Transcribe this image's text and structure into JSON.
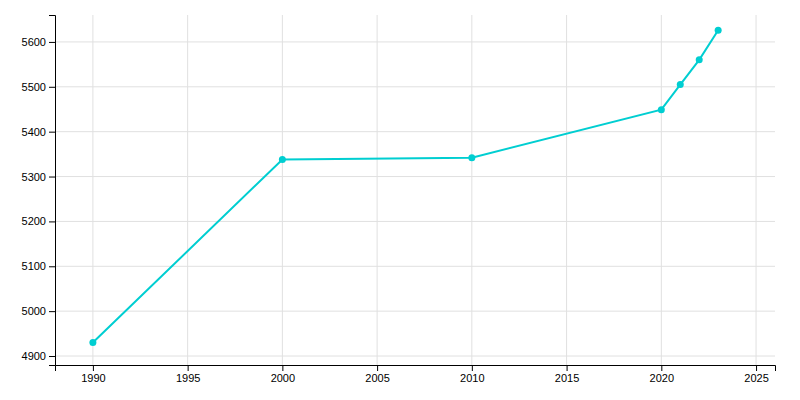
{
  "chart_data": {
    "type": "line",
    "x": [
      1990,
      2000,
      2010,
      2020,
      2021,
      2022,
      2023
    ],
    "values": [
      4930,
      5338,
      5342,
      5449,
      5505,
      5560,
      5626
    ],
    "color": "#00CED1",
    "marker": "circle",
    "xlim": [
      1988,
      2026
    ],
    "ylim": [
      4880,
      5660
    ],
    "xticks": [
      1990,
      1995,
      2000,
      2005,
      2010,
      2015,
      2020,
      2025
    ],
    "yticks": [
      4900,
      5000,
      5100,
      5200,
      5300,
      5400,
      5500,
      5600
    ],
    "grid": true
  }
}
